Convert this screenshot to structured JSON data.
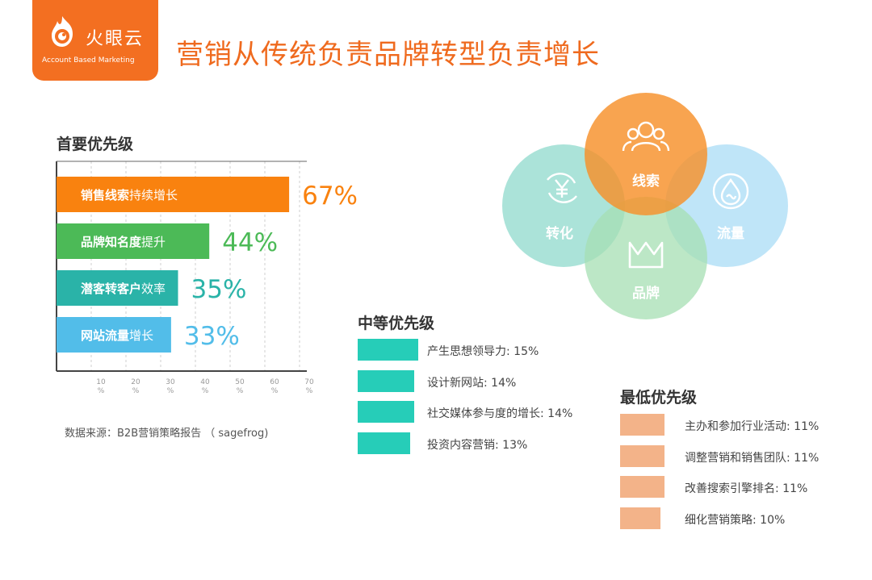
{
  "brand": {
    "name": "火眼云",
    "tagline": "Account Based Marketing",
    "color": "#f36f21"
  },
  "title": "营销从传统负责品牌转型负责增长",
  "chart_data": [
    {
      "type": "bar",
      "orientation": "horizontal",
      "title": "首要优先级",
      "categories": [
        {
          "bold": "销售线索",
          "rest": "持续增长"
        },
        {
          "bold": "品牌知名度",
          "rest": "提升"
        },
        {
          "bold": "潜客转客户",
          "rest": "效率"
        },
        {
          "bold": "网站流量",
          "rest": "增长"
        }
      ],
      "values": [
        67,
        44,
        35,
        33
      ],
      "value_labels": [
        "67%",
        "44%",
        "35%",
        "33%"
      ],
      "colors": [
        "#f9820f",
        "#4cba57",
        "#2ab3a8",
        "#52bde9"
      ],
      "xlim": [
        0,
        70
      ],
      "xticks": [
        10,
        20,
        30,
        40,
        50,
        60,
        70
      ],
      "xtick_unit": "%",
      "grid": true
    },
    {
      "type": "bar",
      "orientation": "horizontal",
      "title": "中等优先级",
      "categories": [
        "产生思想领导力",
        "设计新网站",
        "社交媒体参与度的增长",
        "投资内容营销"
      ],
      "values": [
        15,
        14,
        14,
        13
      ],
      "labels": [
        "产生思想领导力: 15%",
        "设计新网站: 14%",
        "社交媒体参与度的增长: 14%",
        "投资内容营销: 13%"
      ],
      "color": "#26cdb8"
    },
    {
      "type": "bar",
      "orientation": "horizontal",
      "title": "最低优先级",
      "categories": [
        "主办和参加行业活动",
        "调整营销和销售团队",
        "改善搜索引擎排名",
        "细化营销策略"
      ],
      "values": [
        11,
        11,
        11,
        10
      ],
      "labels": [
        "主办和参加行业活动: 11%",
        "调整营销和销售团队: 11%",
        "改善搜索引擎排名: 11%",
        "细化营销策略: 10%"
      ],
      "color": "#f3b389"
    }
  ],
  "source": "数据来源：B2B营销策略报告 （ sagefrog)",
  "venn": {
    "circles": [
      {
        "label": "线索",
        "icon": "people-icon",
        "color": "#f7902a"
      },
      {
        "label": "转化",
        "icon": "yen-cycle-icon",
        "color": "#8fd9cc"
      },
      {
        "label": "流量",
        "icon": "water-drop-icon",
        "color": "#a9dcf5"
      },
      {
        "label": "品牌",
        "icon": "crown-icon",
        "color": "#a6dfb3"
      }
    ]
  }
}
